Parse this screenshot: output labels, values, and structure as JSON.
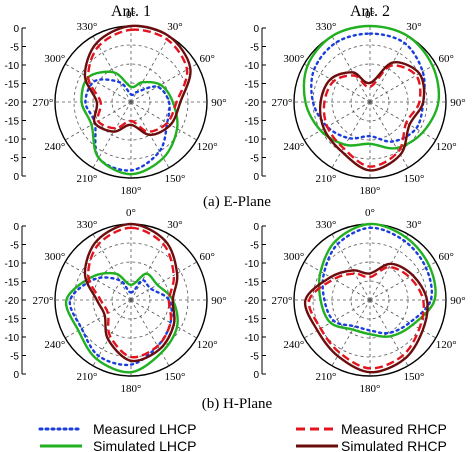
{
  "figure": {
    "col_titles": [
      "Ant. 1",
      "Ant. 2"
    ],
    "row_captions": [
      "(a) E-Plane",
      "(b) H-Plane"
    ]
  },
  "radial_ticks": [
    "0",
    "-5",
    "-10",
    "-15",
    "-20",
    "-15",
    "-10",
    "-5",
    "0"
  ],
  "angle_labels": [
    {
      "deg": 0,
      "text": "0°"
    },
    {
      "deg": 30,
      "text": "30°"
    },
    {
      "deg": 60,
      "text": "60°"
    },
    {
      "deg": 90,
      "text": "90°"
    },
    {
      "deg": 120,
      "text": "120°"
    },
    {
      "deg": 150,
      "text": "150°"
    },
    {
      "deg": 180,
      "text": "180°"
    },
    {
      "deg": 210,
      "text": "210°"
    },
    {
      "deg": 240,
      "text": "240°"
    },
    {
      "deg": 270,
      "text": "270°"
    },
    {
      "deg": 300,
      "text": "300°"
    },
    {
      "deg": 330,
      "text": "330°"
    }
  ],
  "legend": {
    "items": [
      {
        "label": "Measured LHCP",
        "color": "#1a3de0",
        "style": "dotted"
      },
      {
        "label": "Measured RHCP",
        "color": "#e3141e",
        "style": "dashed"
      },
      {
        "label": "Simulated LHCP",
        "color": "#21b021",
        "style": "solid"
      },
      {
        "label": "Simulated RHCP",
        "color": "#6b0d0d",
        "style": "solid"
      }
    ]
  },
  "chart_data": [
    {
      "type": "polar",
      "panel": "E-Plane, Ant. 1",
      "rlim": [
        -20,
        0
      ],
      "grid": true,
      "angles_deg": [
        0,
        30,
        60,
        90,
        120,
        150,
        180,
        210,
        240,
        270,
        300,
        330
      ],
      "series": [
        {
          "name": "Measured LHCP",
          "values": [
            -18,
            -17,
            -12,
            -10,
            -9,
            -5,
            -2,
            -3,
            -9,
            -8,
            -9,
            -14
          ]
        },
        {
          "name": "Simulated LHCP",
          "values": [
            -16,
            -14,
            -11,
            -9,
            -6,
            -3,
            -1,
            -3,
            -8,
            -7,
            -7,
            -11
          ]
        },
        {
          "name": "Measured RHCP",
          "values": [
            -1,
            -1,
            -3,
            -8,
            -9,
            -11,
            -15,
            -12,
            -10,
            -12,
            -7,
            -3
          ]
        },
        {
          "name": "Simulated RHCP",
          "values": [
            0,
            0,
            -2,
            -7,
            -8,
            -10,
            -14,
            -11,
            -9,
            -11,
            -6,
            -2
          ]
        }
      ]
    },
    {
      "type": "polar",
      "panel": "E-Plane, Ant. 2",
      "rlim": [
        -20,
        0
      ],
      "grid": true,
      "angles_deg": [
        0,
        30,
        60,
        90,
        120,
        150,
        180,
        210,
        240,
        270,
        300,
        330
      ],
      "series": [
        {
          "name": "Measured LHCP",
          "values": [
            -2,
            -2,
            -4,
            -6,
            -6,
            -8,
            -11,
            -9,
            -7,
            -5,
            -3,
            -2
          ]
        },
        {
          "name": "Simulated LHCP",
          "values": [
            0,
            0,
            -1,
            -2,
            -4,
            -6,
            -9,
            -7,
            -5,
            -3,
            -1,
            0
          ]
        },
        {
          "name": "Measured RHCP",
          "values": [
            -16,
            -9,
            -6,
            -7,
            -9,
            -5,
            -3,
            -6,
            -7,
            -8,
            -9,
            -12
          ]
        },
        {
          "name": "Simulated RHCP",
          "values": [
            -15,
            -8,
            -5,
            -6,
            -8,
            -4,
            -2,
            -5,
            -6,
            -7,
            -8,
            -11
          ]
        }
      ]
    },
    {
      "type": "polar",
      "panel": "H-Plane, Ant. 1",
      "rlim": [
        -20,
        0
      ],
      "grid": true,
      "angles_deg": [
        0,
        30,
        60,
        90,
        120,
        150,
        180,
        210,
        240,
        270,
        300,
        330
      ],
      "series": [
        {
          "name": "Measured LHCP",
          "values": [
            -18,
            -14,
            -14,
            -10,
            -8,
            -6,
            -3,
            -3,
            -5,
            -4,
            -9,
            -14
          ]
        },
        {
          "name": "Simulated LHCP",
          "values": [
            -16,
            -12,
            -12,
            -9,
            -6,
            -4,
            -1,
            -2,
            -4,
            -3,
            -8,
            -12
          ]
        },
        {
          "name": "Measured RHCP",
          "values": [
            -1,
            -3,
            -7,
            -10,
            -8,
            -6,
            -5,
            -9,
            -13,
            -12,
            -7,
            -3
          ]
        },
        {
          "name": "Simulated RHCP",
          "values": [
            0,
            -2,
            -6,
            -9,
            -7,
            -5,
            -4,
            -8,
            -12,
            -11,
            -6,
            -2
          ]
        }
      ]
    },
    {
      "type": "polar",
      "panel": "H-Plane, Ant. 2",
      "rlim": [
        -20,
        0
      ],
      "grid": true,
      "angles_deg": [
        0,
        30,
        60,
        90,
        120,
        150,
        180,
        210,
        240,
        270,
        300,
        330
      ],
      "series": [
        {
          "name": "Measured LHCP",
          "values": [
            -1,
            -2,
            -3,
            -4,
            -8,
            -10,
            -12,
            -12,
            -9,
            -8,
            -6,
            -3
          ]
        },
        {
          "name": "Simulated LHCP",
          "values": [
            0,
            -1,
            -2,
            -3,
            -7,
            -9,
            -11,
            -11,
            -8,
            -7,
            -5,
            -2
          ]
        },
        {
          "name": "Measured RHCP",
          "values": [
            -14,
            -10,
            -8,
            -6,
            -5,
            -3,
            -2,
            -4,
            -5,
            -4,
            -9,
            -12
          ]
        },
        {
          "name": "Simulated RHCP",
          "values": [
            -13,
            -9,
            -7,
            -5,
            -4,
            -2,
            -1,
            -3,
            -4,
            -3,
            -8,
            -11
          ]
        }
      ]
    }
  ]
}
